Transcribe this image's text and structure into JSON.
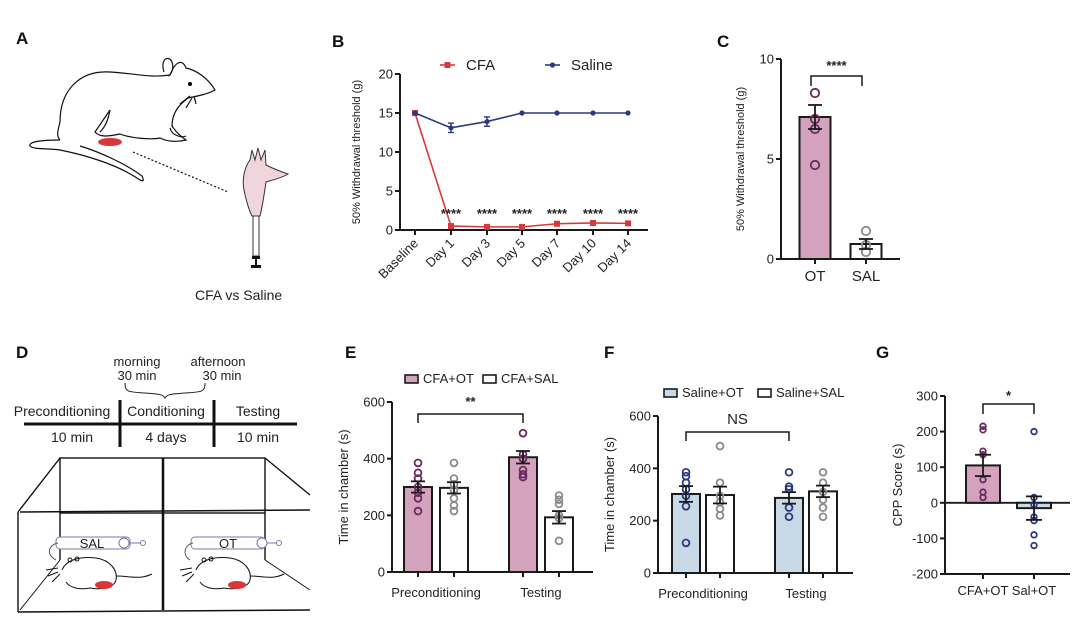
{
  "figure": {
    "panels": {
      "A": {
        "label": "A",
        "caption": "CFA vs Saline"
      },
      "B": {
        "label": "B"
      },
      "C": {
        "label": "C"
      },
      "D": {
        "label": "D",
        "timeline": {
          "phases": [
            "Preconditioning",
            "Conditioning",
            "Testing"
          ],
          "durations": [
            "10 min",
            "4 days",
            "10 min"
          ],
          "sessions": [
            {
              "name": "morning",
              "duration": "30 min"
            },
            {
              "name": "afternoon",
              "duration": "30 min"
            }
          ]
        },
        "chambers": [
          {
            "syringe_label": "SAL"
          },
          {
            "syringe_label": "OT"
          }
        ]
      },
      "E": {
        "label": "E"
      },
      "F": {
        "label": "F"
      },
      "G": {
        "label": "G"
      }
    },
    "colors": {
      "cfa_red": "#d9383a",
      "saline_blue": "#2b3a80",
      "ot_pink": "#d3a3bd",
      "ot_dot": "#6b2a5e",
      "saline_ot_blue": "#c9d9e6",
      "sal_gray": "#8a8a8a",
      "axis": "#1a1a1a"
    }
  },
  "chart_data": [
    {
      "id": "B",
      "type": "line",
      "title": "",
      "xlabel": "",
      "ylabel": "50% Withdrawal threshold (g)",
      "categories": [
        "Baseline",
        "Day 1",
        "Day 3",
        "Day 5",
        "Day 7",
        "Day 10",
        "Day 14"
      ],
      "ylim": [
        0,
        20
      ],
      "yticks": [
        0,
        5,
        10,
        15,
        20
      ],
      "legend": "top",
      "series": [
        {
          "name": "CFA",
          "marker": "square",
          "color": "#d9383a",
          "values": [
            15,
            0.5,
            0.4,
            0.4,
            0.8,
            0.9,
            0.85
          ],
          "errors": [
            0,
            0.1,
            0.1,
            0.1,
            0.1,
            0.1,
            0.1
          ]
        },
        {
          "name": "Saline",
          "marker": "circle",
          "color": "#2b3a80",
          "values": [
            15,
            13.1,
            13.9,
            15,
            15,
            15,
            15
          ],
          "errors": [
            0,
            0.6,
            0.6,
            0,
            0,
            0,
            0
          ]
        }
      ],
      "annotations": [
        {
          "category": "Day 1",
          "text": "****"
        },
        {
          "category": "Day 3",
          "text": "****"
        },
        {
          "category": "Day 5",
          "text": "****"
        },
        {
          "category": "Day 7",
          "text": "****"
        },
        {
          "category": "Day 10",
          "text": "****"
        },
        {
          "category": "Day 14",
          "text": "****"
        }
      ]
    },
    {
      "id": "C",
      "type": "bar",
      "ylabel": "50% Withdrawal threshold (g)",
      "categories": [
        "OT",
        "SAL"
      ],
      "ylim": [
        0,
        10
      ],
      "yticks": [
        0,
        5,
        10
      ],
      "values": [
        7.1,
        0.75
      ],
      "errors": [
        0.6,
        0.25
      ],
      "points": [
        [
          8.3,
          7.0,
          6.5,
          4.7
        ],
        [
          1.4,
          0.7,
          0.35
        ]
      ],
      "fills": [
        "#d3a3bd",
        "#ffffff"
      ],
      "point_colors": [
        "#6b2a5e",
        "#8a8a8a"
      ],
      "significance": {
        "between": [
          "OT",
          "SAL"
        ],
        "text": "****"
      }
    },
    {
      "id": "E",
      "type": "bar",
      "ylabel": "Time in chamber (s)",
      "categories": [
        "Preconditioning",
        "Testing"
      ],
      "ylim": [
        0,
        600
      ],
      "yticks": [
        0,
        200,
        400,
        600
      ],
      "legend": "top",
      "series": [
        {
          "name": "CFA+OT",
          "fill": "#d3a3bd",
          "point_color": "#6b2a5e",
          "values": [
            300,
            405
          ],
          "errors": [
            20,
            22
          ],
          "points": [
            [
              385,
              350,
              330,
              300,
              280,
              260,
              215
            ],
            [
              490,
              415,
              400,
              360,
              345,
              335
            ]
          ]
        },
        {
          "name": "CFA+SAL",
          "fill": "#ffffff",
          "point_color": "#8a8a8a",
          "values": [
            297,
            193
          ],
          "errors": [
            20,
            22
          ],
          "points": [
            [
              385,
              330,
              310,
              290,
              260,
              235,
              215
            ],
            [
              270,
              255,
              240,
              200,
              190,
              110
            ]
          ]
        }
      ],
      "significance": {
        "between": [
          "Preconditioning CFA+OT",
          "Testing CFA+OT"
        ],
        "text": "**"
      }
    },
    {
      "id": "F",
      "type": "bar",
      "ylabel": "Time in chamber (s)",
      "categories": [
        "Preconditioning",
        "Testing"
      ],
      "ylim": [
        0,
        600
      ],
      "yticks": [
        0,
        200,
        400,
        600
      ],
      "legend": "top",
      "series": [
        {
          "name": "Saline+OT",
          "fill": "#c9d9e6",
          "point_color": "#2b3a80",
          "values": [
            302,
            287
          ],
          "errors": [
            30,
            22
          ],
          "points": [
            [
              385,
              370,
              345,
              320,
              295,
              255,
              115
            ],
            [
              385,
              330,
              320,
              250,
              215
            ]
          ]
        },
        {
          "name": "Saline+SAL",
          "fill": "#ffffff",
          "point_color": "#8a8a8a",
          "values": [
            298,
            312
          ],
          "errors": [
            32,
            22
          ],
          "points": [
            [
              485,
              345,
              295,
              270,
              245,
              220
            ],
            [
              385,
              345,
              310,
              280,
              250,
              215
            ]
          ]
        }
      ],
      "significance": {
        "between": [
          "Preconditioning Saline+OT",
          "Testing Saline+OT"
        ],
        "text": "NS"
      }
    },
    {
      "id": "G",
      "type": "bar",
      "ylabel": "CPP Score (s)",
      "categories": [
        "CFA+OT",
        "Sal+OT"
      ],
      "ylim": [
        -200,
        300
      ],
      "yticks": [
        -200,
        -100,
        0,
        100,
        200,
        300
      ],
      "values": [
        105,
        -15
      ],
      "errors": [
        30,
        33
      ],
      "points": [
        [
          215,
          205,
          145,
          135,
          65,
          30,
          15
        ],
        [
          200,
          15,
          -5,
          -40,
          -50,
          -90,
          -120
        ]
      ],
      "fills": [
        "#d3a3bd",
        "#c9d9e6"
      ],
      "point_colors": [
        "#6b2a5e",
        "#2b3a80"
      ],
      "significance": {
        "between": [
          "CFA+OT",
          "Sal+OT"
        ],
        "text": "*"
      }
    }
  ]
}
